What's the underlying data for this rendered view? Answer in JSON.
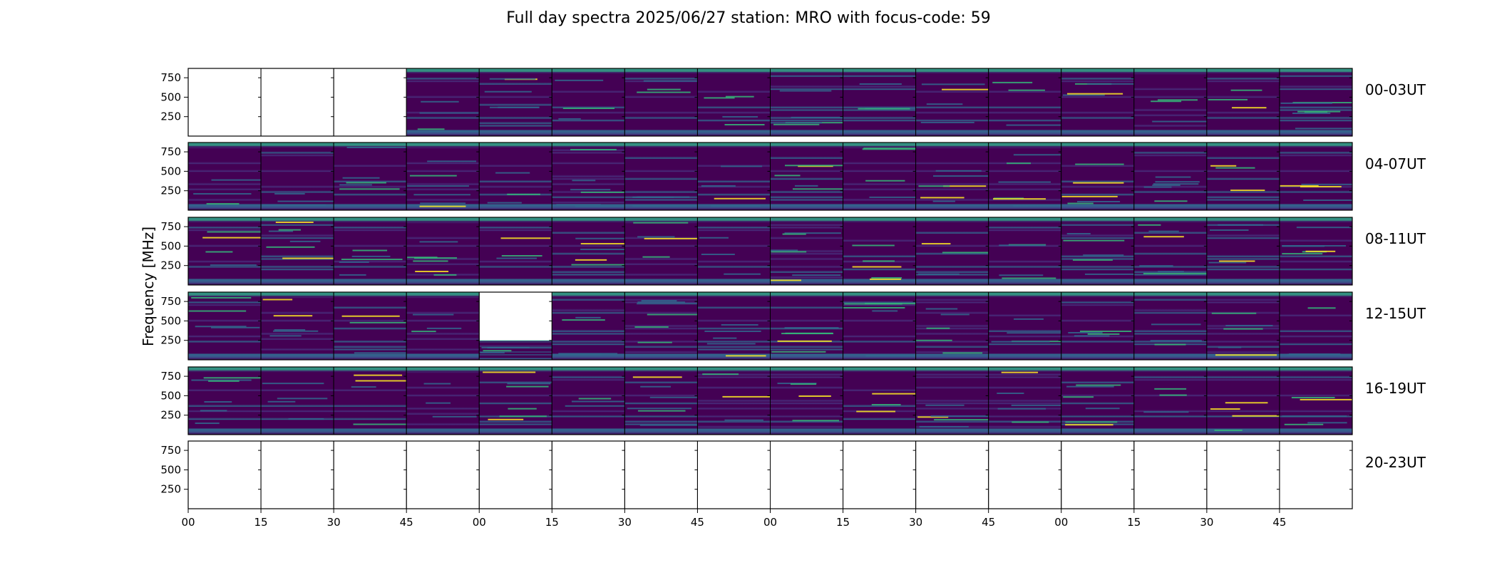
{
  "chart_data": {
    "type": "heatmap",
    "title": "Full day spectra 2025/06/27 station: MRO with focus-code: 59",
    "xlabel": "",
    "ylabel": "Frequency [MHz]",
    "y_ticks": [
      250,
      500,
      750
    ],
    "ylim": [
      0,
      870
    ],
    "x_ticks": [
      "00",
      "15",
      "30",
      "45",
      "00",
      "15",
      "30",
      "45",
      "00",
      "15",
      "30",
      "45",
      "00",
      "15",
      "30",
      "45"
    ],
    "colormap": "viridis",
    "colors": {
      "low": "#440154",
      "mid": "#31688e",
      "mid2": "#35b779",
      "high": "#fde725"
    },
    "rows": [
      {
        "label": "00-03UT",
        "panels_with_data": [
          false,
          false,
          false,
          true,
          true,
          true,
          true,
          true,
          true,
          true,
          true,
          true,
          true,
          true,
          true,
          true
        ]
      },
      {
        "label": "04-07UT",
        "panels_with_data": [
          true,
          true,
          true,
          true,
          true,
          true,
          true,
          true,
          true,
          true,
          true,
          true,
          true,
          true,
          true,
          true
        ]
      },
      {
        "label": "08-11UT",
        "panels_with_data": [
          true,
          true,
          true,
          true,
          true,
          true,
          true,
          true,
          true,
          true,
          true,
          true,
          true,
          true,
          true,
          true
        ]
      },
      {
        "label": "12-15UT",
        "panels_with_data": [
          true,
          true,
          true,
          true,
          "partial",
          true,
          true,
          true,
          true,
          true,
          true,
          true,
          true,
          true,
          true,
          true
        ]
      },
      {
        "label": "16-19UT",
        "panels_with_data": [
          true,
          true,
          true,
          true,
          true,
          true,
          true,
          true,
          true,
          true,
          true,
          true,
          true,
          true,
          true,
          true
        ]
      },
      {
        "label": "20-23UT",
        "panels_with_data": [
          false,
          false,
          false,
          false,
          false,
          false,
          false,
          false,
          false,
          false,
          false,
          false,
          false,
          false,
          false,
          false
        ]
      }
    ]
  }
}
